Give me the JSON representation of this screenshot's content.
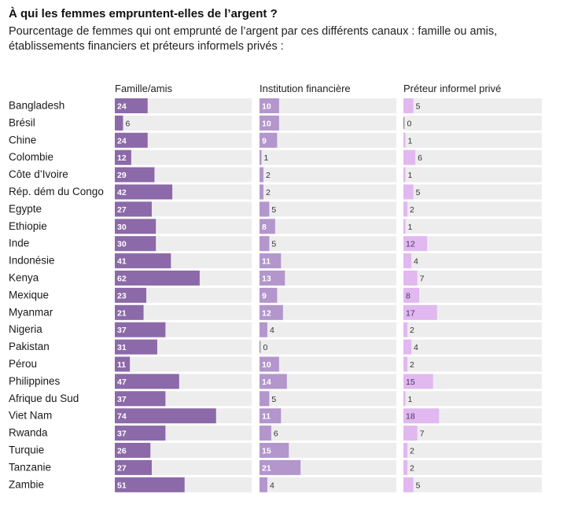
{
  "title": "À qui les femmes empruntent-elles de l’argent ?",
  "subtitle": "Pourcentage de femmes qui ont emprunté de l’argent par ces différents canaux : famille ou amis, établissements financiers et préteurs informels privés :",
  "chart_data": {
    "type": "bar",
    "orientation": "horizontal",
    "title": "À qui les femmes empruntent-elles de l’argent ?",
    "unit": "%",
    "categories": [
      "Bangladesh",
      "Brésil",
      "Chine",
      "Colombie",
      "Côte d’Ivoire",
      "Rép. dém du Congo",
      "Egypte",
      "Ethiopie",
      "Inde",
      "Indonésie",
      "Kenya",
      "Mexique",
      "Myanmar",
      "Nigeria",
      "Pakistan",
      "Pérou",
      "Philippines",
      "Afrique du Sud",
      "Viet Nam",
      "Rwanda",
      "Turquie",
      "Tanzanie",
      "Zambie"
    ],
    "series": [
      {
        "name": "Famille/amis",
        "color": "#8c69a8",
        "max": 100,
        "values": [
          24,
          6,
          24,
          12,
          29,
          42,
          27,
          30,
          30,
          41,
          62,
          23,
          21,
          37,
          31,
          11,
          47,
          37,
          74,
          37,
          26,
          27,
          51
        ]
      },
      {
        "name": "Institution financière",
        "color": "#b396cc",
        "max": 70,
        "values": [
          10,
          10,
          9,
          1,
          2,
          2,
          5,
          8,
          5,
          11,
          13,
          9,
          12,
          4,
          0,
          10,
          14,
          5,
          11,
          6,
          15,
          21,
          4
        ]
      },
      {
        "name": "Préteur informel privé",
        "color": "#e1b8ef",
        "max": 70,
        "values": [
          5,
          0,
          1,
          6,
          1,
          5,
          2,
          1,
          12,
          4,
          7,
          8,
          17,
          2,
          4,
          2,
          15,
          1,
          18,
          7,
          2,
          2,
          5
        ]
      }
    ]
  }
}
